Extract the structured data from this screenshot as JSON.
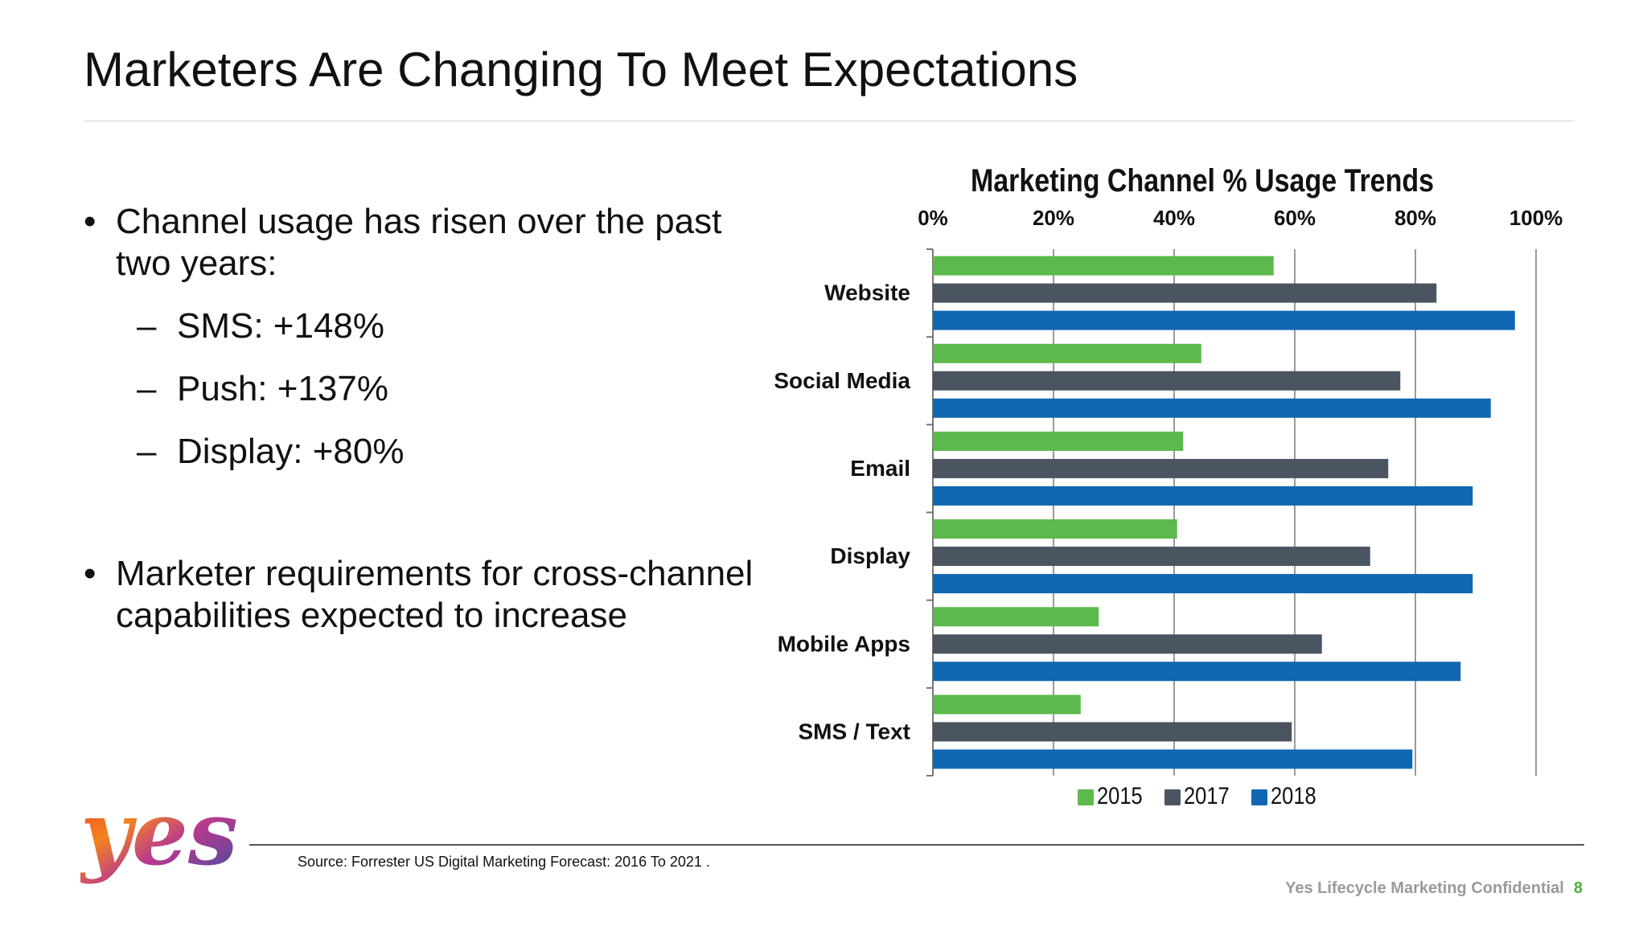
{
  "slide": {
    "title": "Marketers Are Changing To Meet Expectations",
    "bullets": [
      {
        "text": "Channel usage has risen over the past two years:",
        "sub": [
          "SMS: +148%",
          "Push: +137%",
          "Display: +80%"
        ]
      },
      {
        "text": "Marketer requirements for cross-channel capabilities expected to increase",
        "sub": []
      }
    ],
    "source": "Source: Forrester US Digital Marketing Forecast: 2016 To 2021 .",
    "footer": {
      "label": "Yes Lifecycle Marketing Confidential",
      "page": "8"
    },
    "logo_text": "yes"
  },
  "chart_data": {
    "type": "bar",
    "orientation": "horizontal",
    "title": "Marketing Channel % Usage Trends",
    "categories": [
      "Website",
      "Social Media",
      "Email",
      "Display",
      "Mobile Apps",
      "SMS / Text"
    ],
    "series": [
      {
        "name": "2015",
        "color": "#5cb94b",
        "values": [
          56.5,
          44.5,
          41.5,
          40.5,
          27.5,
          24.5
        ]
      },
      {
        "name": "2017",
        "color": "#4a5561",
        "values": [
          83.5,
          77.5,
          75.5,
          72.5,
          64.5,
          59.5
        ]
      },
      {
        "name": "2018",
        "color": "#1167b1",
        "values": [
          96.5,
          92.5,
          89.5,
          89.5,
          87.5,
          79.5
        ]
      }
    ],
    "xlim": [
      0,
      100
    ],
    "ticks": [
      "0%",
      "20%",
      "40%",
      "60%",
      "80%",
      "100%"
    ],
    "tick_values": [
      0,
      20,
      40,
      60,
      80,
      100
    ],
    "axis_position": "top",
    "grid": true,
    "legend_position": "bottom"
  }
}
